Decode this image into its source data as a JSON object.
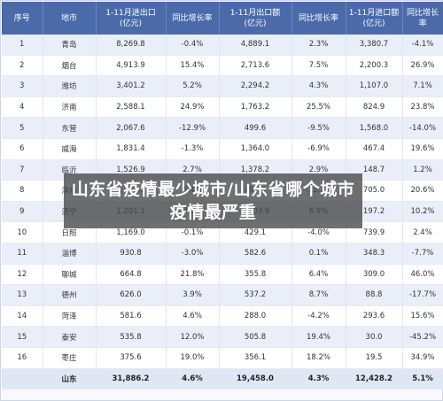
{
  "headers": [
    "序号",
    "地市",
    "1-11月进出口\n(亿元)",
    "同比增长率",
    "1-11月出口额\n(亿元)",
    "同比增长率",
    "1-11月进口额\n(亿元)",
    "同比增长率"
  ],
  "rows": [
    [
      "1",
      "青岛",
      "8,269.8",
      "-0.4%",
      "4,889.1",
      "2.3%",
      "3,380.7",
      "-4.1%"
    ],
    [
      "2",
      "烟台",
      "4,913.9",
      "15.4%",
      "2,713.6",
      "7.5%",
      "2,200.3",
      "26.9%"
    ],
    [
      "3",
      "潍坊",
      "3,401.2",
      "5.2%",
      "2,294.2",
      "4.3%",
      "1,107.0",
      "7.1%"
    ],
    [
      "4",
      "济南",
      "2,588.1",
      "24.9%",
      "1,763.2",
      "25.5%",
      "824.9",
      "23.8%"
    ],
    [
      "5",
      "东营",
      "2,067.6",
      "-12.9%",
      "499.6",
      "-9.5%",
      "1,568.0",
      "-14.0%"
    ],
    [
      "6",
      "威海",
      "1,831.4",
      "-1.3%",
      "1,364.0",
      "-6.9%",
      "467.4",
      "19.6%"
    ],
    [
      "7",
      "临沂",
      "1,526.9",
      "2.7%",
      "1,378.2",
      "2.9%",
      "148.7",
      "1.2%"
    ],
    [
      "8",
      "滨州",
      "1,202.5",
      "8.4%",
      "497.4",
      "-13.7%",
      "705.0",
      "20.6%"
    ],
    [
      "9",
      "济宁",
      "1,201.1",
      "7.0%",
      "1,003.9",
      "6.9%",
      "197.2",
      "10.2%"
    ],
    [
      "10",
      "日照",
      "1,169.0",
      "-0.1%",
      "429.1",
      "-4.0%",
      "739.9",
      "2.4%"
    ],
    [
      "11",
      "淄博",
      "930.8",
      "-3.0%",
      "582.6",
      "0.1%",
      "348.3",
      "-7.7%"
    ],
    [
      "12",
      "聊城",
      "664.8",
      "21.8%",
      "355.8",
      "6.4%",
      "309.0",
      "46.0%"
    ],
    [
      "13",
      "德州",
      "626.0",
      "3.9%",
      "537.2",
      "8.7%",
      "88.8",
      "-17.7%"
    ],
    [
      "14",
      "菏泽",
      "581.6",
      "4.6%",
      "288.0",
      "-4.2%",
      "293.6",
      "15.6%"
    ],
    [
      "15",
      "泰安",
      "535.8",
      "12.0%",
      "505.8",
      "19.4%",
      "30.0",
      "-45.2%"
    ],
    [
      "16",
      "枣庄",
      "375.6",
      "19.0%",
      "356.1",
      "18.2%",
      "19.5",
      "34.9%"
    ]
  ],
  "total": [
    "",
    "山东",
    "31,886.2",
    "4.6%",
    "19,458.0",
    "4.3%",
    "12,428.2",
    "5.1%"
  ],
  "overlay_title": "山东省疫情最少城市/山东省哪个城市疫情最严重"
}
